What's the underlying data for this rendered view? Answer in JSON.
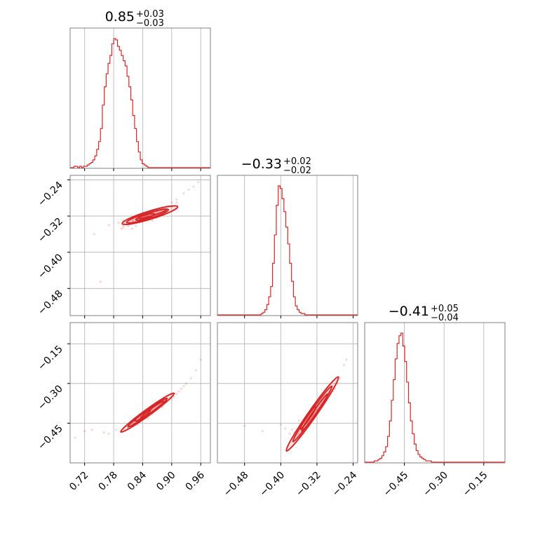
{
  "chart_data": {
    "type": "corner",
    "color": "#d62728",
    "grid": true,
    "params": [
      {
        "range": [
          0.69,
          0.98
        ],
        "ticks": [
          "0.72",
          "0.78",
          "0.84",
          "0.90",
          "0.96"
        ],
        "title": {
          "value": "0.85",
          "upper": "+0.03",
          "lower": "−0.03"
        },
        "median": 0.85,
        "sigma": 0.03
      },
      {
        "range": [
          -0.54,
          -0.23
        ],
        "ticks": [
          "−0.48",
          "−0.40",
          "−0.32",
          "−0.24"
        ],
        "title": {
          "value": "−0.33",
          "upper": "+0.02",
          "lower": "−0.02"
        },
        "median": -0.33,
        "sigma": 0.02
      },
      {
        "range": [
          -0.6,
          -0.07
        ],
        "ticks": [
          "−0.45",
          "−0.30",
          "−0.15"
        ],
        "title": {
          "value": "−0.41",
          "upper": "+0.05",
          "lower": "−0.04"
        },
        "median": -0.41,
        "sigma": 0.045
      }
    ],
    "y_ticks": {
      "row1": [
        "−0.24",
        "−0.32",
        "−0.40",
        "−0.48"
      ],
      "row2": [
        "−0.15",
        "−0.30",
        "−0.45"
      ]
    },
    "histograms": [
      {
        "param": 0,
        "bin_start": 0.69,
        "bin_width": 0.00392,
        "counts": [
          0,
          0,
          1,
          1,
          0,
          1,
          0,
          1,
          1,
          2,
          3,
          4,
          6,
          9,
          14,
          20,
          30,
          48,
          62,
          72,
          80,
          86,
          95,
          99,
          98,
          93,
          90,
          86,
          82,
          78,
          70,
          62,
          52,
          40,
          30,
          20,
          12,
          6,
          3,
          2,
          1,
          0,
          0,
          0,
          0,
          0,
          0,
          0,
          0,
          0,
          0,
          0,
          0,
          0,
          0,
          0,
          0,
          0,
          0,
          0,
          0,
          0,
          0,
          0,
          0,
          0,
          0,
          0,
          0,
          0,
          0,
          0,
          0,
          0
        ]
      },
      {
        "param": 1,
        "bin_start": -0.54,
        "bin_width": 0.0042,
        "counts": [
          0,
          0,
          0,
          0,
          0,
          0,
          0,
          0,
          0,
          0,
          0,
          0,
          0,
          0,
          0,
          0,
          0,
          0,
          0,
          0,
          0,
          0,
          0,
          1,
          2,
          4,
          8,
          14,
          22,
          40,
          62,
          85,
          100,
          98,
          90,
          80,
          68,
          55,
          40,
          26,
          14,
          7,
          4,
          2,
          1,
          1,
          0,
          0,
          0,
          0,
          0,
          0,
          0,
          0,
          0,
          0,
          0,
          0,
          0,
          0,
          0,
          0,
          0,
          0,
          0,
          0,
          0,
          0,
          0,
          0,
          0,
          0,
          0,
          0
        ]
      },
      {
        "param": 2,
        "bin_start": -0.6,
        "bin_width": 0.0072,
        "counts": [
          0,
          0,
          0,
          0,
          0,
          1,
          1,
          2,
          3,
          5,
          8,
          12,
          20,
          32,
          48,
          64,
          80,
          92,
          98,
          100,
          90,
          78,
          62,
          46,
          32,
          22,
          14,
          9,
          6,
          4,
          3,
          2,
          1,
          1,
          1,
          0,
          0,
          0,
          0,
          0,
          0,
          0,
          0,
          0,
          0,
          0,
          0,
          0,
          0,
          0,
          0,
          0,
          0,
          0,
          0,
          0,
          0,
          0,
          0,
          0,
          0,
          0,
          0,
          0,
          0,
          0,
          0,
          0,
          0,
          0,
          0,
          0,
          0,
          0
        ]
      }
    ],
    "scatter_panels": [
      {
        "x_param": 0,
        "y_param": 1,
        "points": [
          [
            0.74,
            -0.36
          ],
          [
            0.753,
            -0.465
          ],
          [
            0.79,
            -0.335
          ],
          [
            0.8,
            -0.341
          ],
          [
            0.81,
            -0.342
          ],
          [
            0.8,
            -0.33
          ],
          [
            0.82,
            -0.332
          ],
          [
            0.83,
            -0.328
          ],
          [
            0.835,
            -0.33
          ],
          [
            0.84,
            -0.325
          ],
          [
            0.845,
            -0.322
          ],
          [
            0.85,
            -0.318
          ],
          [
            0.86,
            -0.312
          ],
          [
            0.87,
            -0.31
          ],
          [
            0.88,
            -0.302
          ],
          [
            0.89,
            -0.298
          ],
          [
            0.9,
            -0.29
          ],
          [
            0.91,
            -0.283
          ],
          [
            0.925,
            -0.27
          ],
          [
            0.935,
            -0.262
          ],
          [
            0.945,
            -0.255
          ],
          [
            0.955,
            -0.245
          ],
          [
            0.818,
            -0.348
          ],
          [
            0.796,
            -0.348
          ],
          [
            0.826,
            -0.342
          ],
          [
            0.803,
            -0.337
          ],
          [
            0.86,
            -0.33
          ],
          [
            0.87,
            -0.324
          ],
          [
            0.82,
            -0.33
          ],
          [
            0.8,
            -0.345
          ],
          [
            0.812,
            -0.338
          ],
          [
            0.852,
            -0.314
          ],
          [
            0.866,
            -0.316
          ],
          [
            0.9,
            -0.3
          ],
          [
            0.91,
            -0.29
          ],
          [
            0.77,
            -0.34
          ]
        ],
        "contours": [
          {
            "cx": 0.855,
            "cy": -0.318,
            "rx": 0.06,
            "ry": 0.009,
            "angle": -17
          },
          {
            "cx": 0.85,
            "cy": -0.32,
            "rx": 0.045,
            "ry": 0.0065,
            "angle": -17
          },
          {
            "cx": 0.86,
            "cy": -0.315,
            "rx": 0.03,
            "ry": 0.004,
            "angle": -17
          },
          {
            "cx": 0.845,
            "cy": -0.322,
            "rx": 0.02,
            "ry": 0.003,
            "angle": -17
          }
        ]
      },
      {
        "x_param": 0,
        "y_param": 2,
        "points": [
          [
            0.7,
            -0.505
          ],
          [
            0.72,
            -0.48
          ],
          [
            0.735,
            -0.475
          ],
          [
            0.77,
            -0.49
          ],
          [
            0.785,
            -0.475
          ],
          [
            0.8,
            -0.47
          ],
          [
            0.81,
            -0.46
          ],
          [
            0.82,
            -0.45
          ],
          [
            0.835,
            -0.44
          ],
          [
            0.845,
            -0.43
          ],
          [
            0.86,
            -0.415
          ],
          [
            0.87,
            -0.4
          ],
          [
            0.88,
            -0.385
          ],
          [
            0.89,
            -0.37
          ],
          [
            0.9,
            -0.36
          ],
          [
            0.91,
            -0.34
          ],
          [
            0.92,
            -0.32
          ],
          [
            0.93,
            -0.3
          ],
          [
            0.94,
            -0.28
          ],
          [
            0.95,
            -0.25
          ],
          [
            0.96,
            -0.21
          ],
          [
            0.795,
            -0.48
          ],
          [
            0.81,
            -0.47
          ],
          [
            0.83,
            -0.455
          ],
          [
            0.85,
            -0.43
          ],
          [
            0.88,
            -0.39
          ],
          [
            0.905,
            -0.35
          ],
          [
            0.915,
            -0.33
          ],
          [
            0.925,
            -0.31
          ],
          [
            0.76,
            -0.485
          ]
        ],
        "contours": [
          {
            "cx": 0.85,
            "cy": -0.41,
            "rx": 0.068,
            "ry": 0.012,
            "angle": -36
          },
          {
            "cx": 0.85,
            "cy": -0.41,
            "rx": 0.05,
            "ry": 0.008,
            "angle": -36
          },
          {
            "cx": 0.86,
            "cy": -0.4,
            "rx": 0.03,
            "ry": 0.005,
            "angle": -36
          },
          {
            "cx": 0.84,
            "cy": -0.42,
            "rx": 0.02,
            "ry": 0.003,
            "angle": -36
          }
        ]
      },
      {
        "x_param": 1,
        "y_param": 2,
        "points": [
          [
            -0.48,
            -0.46
          ],
          [
            -0.44,
            -0.48
          ],
          [
            -0.4,
            -0.455
          ],
          [
            -0.39,
            -0.47
          ],
          [
            -0.38,
            -0.49
          ],
          [
            -0.37,
            -0.5
          ],
          [
            -0.365,
            -0.48
          ],
          [
            -0.36,
            -0.49
          ],
          [
            -0.355,
            -0.5
          ],
          [
            -0.35,
            -0.47
          ],
          [
            -0.345,
            -0.45
          ],
          [
            -0.34,
            -0.44
          ],
          [
            -0.33,
            -0.42
          ],
          [
            -0.32,
            -0.4
          ],
          [
            -0.31,
            -0.38
          ],
          [
            -0.3,
            -0.36
          ],
          [
            -0.29,
            -0.34
          ],
          [
            -0.28,
            -0.32
          ],
          [
            -0.27,
            -0.28
          ],
          [
            -0.26,
            -0.23
          ],
          [
            -0.255,
            -0.21
          ],
          [
            -0.36,
            -0.505
          ],
          [
            -0.37,
            -0.485
          ],
          [
            -0.355,
            -0.46
          ],
          [
            -0.3,
            -0.35
          ],
          [
            -0.285,
            -0.33
          ],
          [
            -0.275,
            -0.3
          ],
          [
            -0.35,
            -0.49
          ],
          [
            -0.375,
            -0.475
          ],
          [
            -0.36,
            -0.44
          ]
        ],
        "contours": [
          {
            "cx": -0.33,
            "cy": -0.415,
            "rx": 0.1,
            "ry": 0.015,
            "angle": -55
          },
          {
            "cx": -0.33,
            "cy": -0.415,
            "rx": 0.075,
            "ry": 0.01,
            "angle": -55
          },
          {
            "cx": -0.325,
            "cy": -0.41,
            "rx": 0.05,
            "ry": 0.006,
            "angle": -55
          },
          {
            "cx": -0.34,
            "cy": -0.43,
            "rx": 0.03,
            "ry": 0.004,
            "angle": -55
          }
        ]
      }
    ]
  }
}
